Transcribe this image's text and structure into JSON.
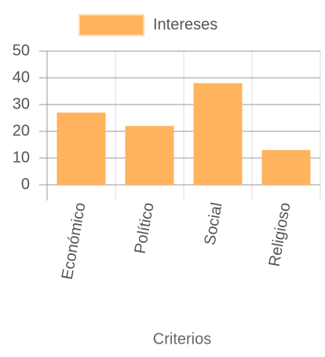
{
  "chart_data": {
    "type": "bar",
    "x_label": "Criterios",
    "categories": [
      "Económico",
      "Político",
      "Social",
      "Religioso"
    ],
    "series": [
      {
        "name": "Intereses",
        "color": "#ffb35c",
        "values": [
          27,
          22,
          38,
          13
        ]
      }
    ],
    "ylim": [
      0,
      50
    ],
    "yticks": [
      0,
      10,
      20,
      30,
      40,
      50
    ],
    "grid": true,
    "legend": "top"
  }
}
